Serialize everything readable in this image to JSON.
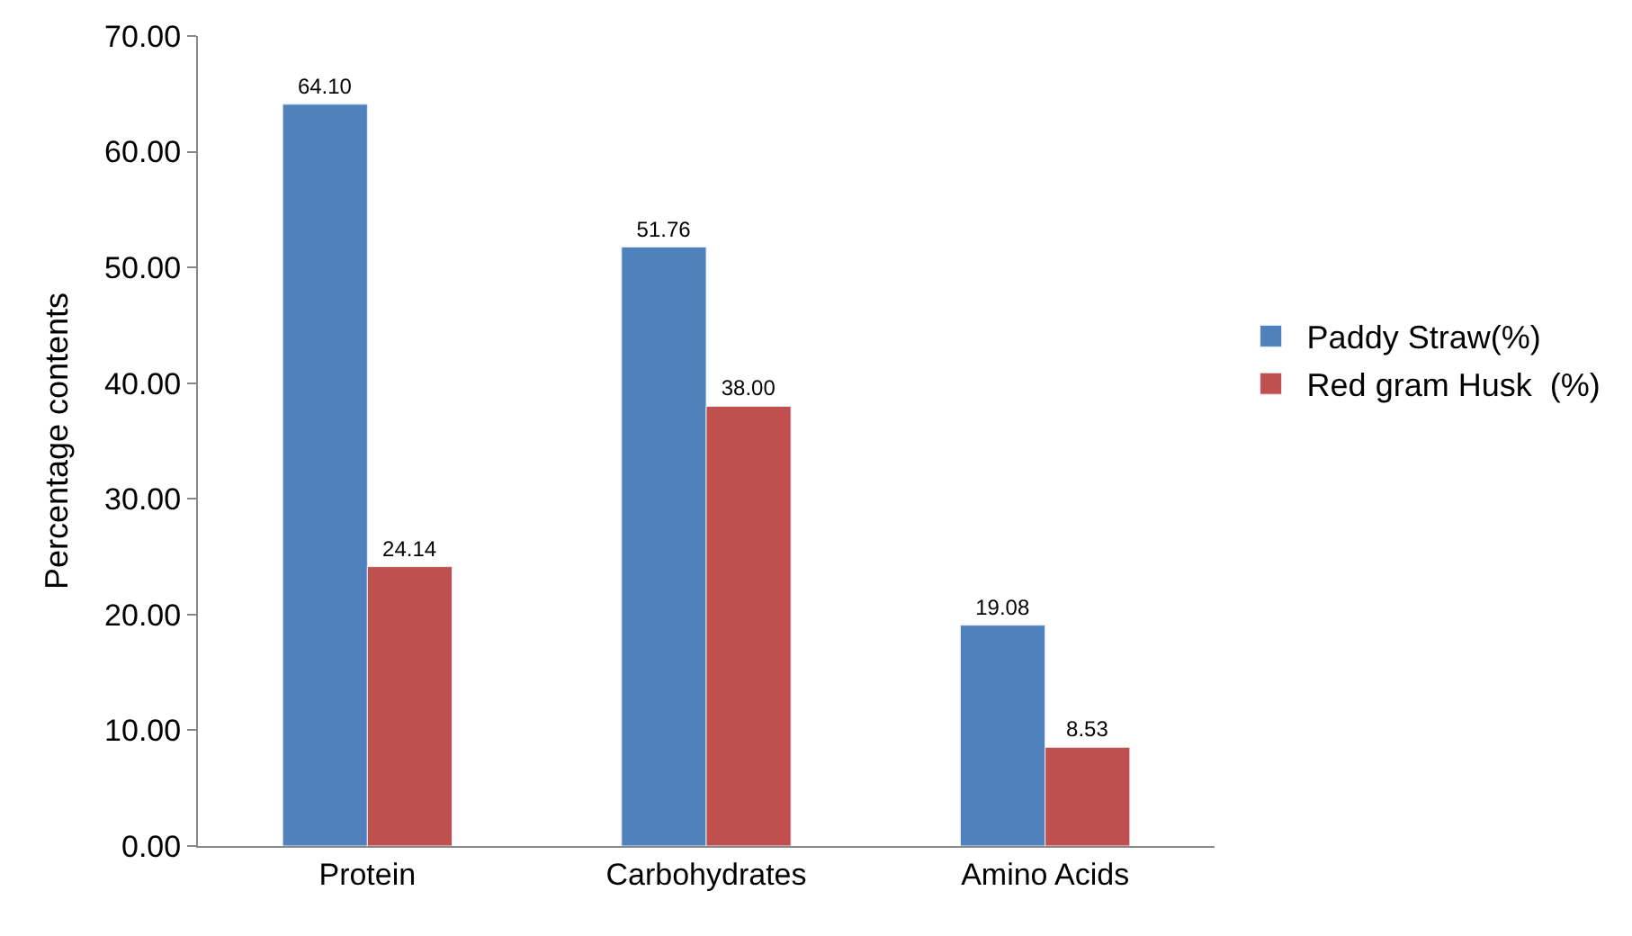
{
  "chart_data": {
    "type": "bar",
    "ylabel": "Percentage contents",
    "categories": [
      "Protein",
      "Carbohydrates",
      "Amino Acids"
    ],
    "series": [
      {
        "name": "Paddy Straw(%)",
        "color": "#4f81bd",
        "values": [
          64.1,
          51.76,
          19.08
        ],
        "value_labels": [
          "64.10",
          "51.76",
          "19.08"
        ]
      },
      {
        "name": "Red gram Husk  (%)",
        "color": "#c0504d",
        "values": [
          24.14,
          38.0,
          8.53
        ],
        "value_labels": [
          "24.14",
          "38.00",
          "8.53"
        ]
      }
    ],
    "ylim": [
      0,
      70
    ],
    "yticks": [
      {
        "value": 0,
        "label": "0.00"
      },
      {
        "value": 10,
        "label": "10.00"
      },
      {
        "value": 20,
        "label": "20.00"
      },
      {
        "value": 30,
        "label": "30.00"
      },
      {
        "value": 40,
        "label": "40.00"
      },
      {
        "value": 50,
        "label": "50.00"
      },
      {
        "value": 60,
        "label": "60.00"
      },
      {
        "value": 70,
        "label": "70.00"
      }
    ],
    "legend": "right"
  }
}
